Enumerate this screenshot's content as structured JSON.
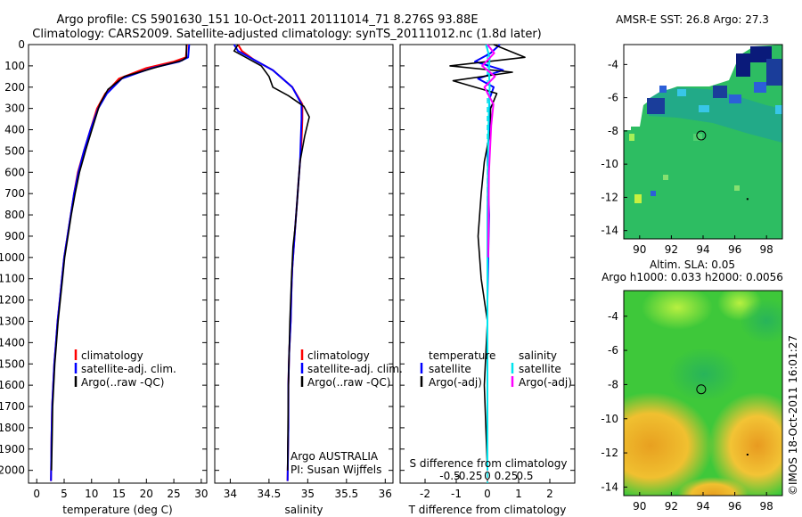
{
  "header": {
    "title_line1": "Argo profile: CS 5901630_151 10-Oct-2011 20111014_71 8.276S 93.88E",
    "title_line2": "Climatology: CARS2009. Satellite-adjusted climatology: synTS_20111012.nc (1.8d later)"
  },
  "colors": {
    "climatology": "#ff0000",
    "satellite": "#0000ff",
    "argo": "#000000",
    "salinity_satellite": "#00e5ee",
    "salinity_argo": "#ff00ff"
  },
  "notes": {
    "argo_country": "Argo AUSTRALIA",
    "pi": "PI: Susan Wijffels",
    "stamp": "©IMOS 18-Oct-2011 16:01:27"
  },
  "chart_data": [
    {
      "type": "line",
      "xlabel": "temperature (deg C)",
      "ylabel": "",
      "xlim": [
        -1.5,
        31
      ],
      "ylim": [
        2060,
        0
      ],
      "xticks": [
        0,
        5,
        10,
        15,
        20,
        25,
        30
      ],
      "yticks": [
        0,
        100,
        200,
        300,
        400,
        500,
        600,
        700,
        800,
        900,
        1000,
        1100,
        1200,
        1300,
        1400,
        1500,
        1600,
        1700,
        1800,
        1900,
        2000
      ],
      "legend": [
        "climatology",
        "satellite-adj. clim.",
        "Argo(..raw -QC)"
      ],
      "legend_position": "bottom-right",
      "series": [
        {
          "name": "climatology",
          "color": "#ff0000",
          "x": [
            27.4,
            27.2,
            25,
            20,
            15,
            12.5,
            11,
            9.8,
            8.6,
            7.5,
            6.8,
            6.2,
            5.6,
            5,
            4.6,
            4.2,
            3.8,
            3.5,
            3.2,
            3,
            2.8,
            2.7,
            2.6
          ],
          "y": [
            0,
            60,
            80,
            110,
            160,
            230,
            300,
            400,
            500,
            600,
            700,
            800,
            900,
            1000,
            1100,
            1200,
            1300,
            1400,
            1500,
            1600,
            1700,
            1850,
            2050
          ]
        },
        {
          "name": "satellite-adj. clim.",
          "color": "#0000ff",
          "x": [
            27.8,
            27.6,
            26,
            21,
            15.5,
            12.8,
            11.2,
            9.8,
            8.6,
            7.6,
            6.8,
            6.2,
            5.6,
            5,
            4.6,
            4.2,
            3.8,
            3.5,
            3.2,
            3,
            2.8,
            2.7,
            2.6
          ],
          "y": [
            0,
            60,
            80,
            110,
            160,
            230,
            300,
            400,
            500,
            600,
            700,
            800,
            900,
            1000,
            1100,
            1200,
            1300,
            1400,
            1500,
            1600,
            1700,
            1850,
            2050
          ]
        },
        {
          "name": "Argo(..raw -QC)",
          "color": "#000000",
          "x": [
            27.3,
            27.3,
            26.5,
            22,
            16,
            13,
            11.5,
            10.3,
            9,
            7.8,
            7,
            6.3,
            5.7,
            5.1,
            4.7,
            4.3,
            3.9,
            3.6,
            3.3,
            3.1,
            2.9,
            2.8,
            2.7
          ],
          "y": [
            0,
            60,
            75,
            105,
            150,
            210,
            280,
            380,
            490,
            600,
            700,
            800,
            900,
            1000,
            1100,
            1200,
            1300,
            1400,
            1500,
            1600,
            1700,
            1850,
            2000
          ]
        }
      ]
    },
    {
      "type": "line",
      "xlabel": "salinity",
      "ylabel": "",
      "xlim": [
        33.8,
        36.1
      ],
      "ylim": [
        2060,
        0
      ],
      "xticks": [
        34,
        34.5,
        35,
        35.5,
        36
      ],
      "legend": [
        "climatology",
        "satellite-adj. clim.",
        "Argo(..raw -QC)"
      ],
      "legend_position": "bottom-right",
      "series": [
        {
          "name": "climatology",
          "color": "#ff0000",
          "x": [
            34.1,
            34.15,
            34.3,
            34.55,
            34.8,
            34.93,
            34.93,
            34.92,
            34.9,
            34.88,
            34.86,
            34.84,
            34.82,
            34.8,
            34.79,
            34.78,
            34.76,
            34.75,
            34.75,
            34.74
          ],
          "y": [
            0,
            30,
            70,
            120,
            200,
            280,
            350,
            450,
            550,
            650,
            750,
            850,
            950,
            1050,
            1150,
            1300,
            1450,
            1600,
            1800,
            2050
          ]
        },
        {
          "name": "satellite-adj. clim.",
          "color": "#0000ff",
          "x": [
            34.05,
            34.1,
            34.3,
            34.55,
            34.8,
            34.92,
            34.92,
            34.91,
            34.9,
            34.88,
            34.86,
            34.84,
            34.82,
            34.8,
            34.79,
            34.78,
            34.76,
            34.75,
            34.75,
            34.74
          ],
          "y": [
            0,
            30,
            70,
            120,
            200,
            280,
            350,
            450,
            550,
            650,
            750,
            850,
            950,
            1050,
            1150,
            1300,
            1450,
            1600,
            1800,
            2050
          ]
        },
        {
          "name": "Argo(..raw -QC)",
          "color": "#000000",
          "x": [
            34.1,
            34.05,
            34.2,
            34.4,
            34.5,
            34.55,
            34.75,
            34.95,
            35.02,
            34.96,
            34.9,
            34.88,
            34.86,
            34.84,
            34.81,
            34.79,
            34.77,
            34.75,
            34.74
          ],
          "y": [
            0,
            30,
            60,
            100,
            150,
            200,
            240,
            290,
            340,
            430,
            550,
            650,
            750,
            850,
            950,
            1100,
            1300,
            1600,
            2000
          ]
        }
      ]
    },
    {
      "type": "line",
      "xlabel": "T difference from climatology",
      "xlabel_top": "S difference from climatology",
      "xlim": [
        -2.8,
        2.8
      ],
      "ylim": [
        2060,
        0
      ],
      "xticks": [
        -2,
        -1,
        0,
        1,
        2
      ],
      "xticks_top": [
        -0.5,
        -0.25,
        0,
        0.25,
        0.5
      ],
      "legend": [
        "temperature",
        "satellite",
        "Argo(-adj)",
        "salinity",
        "satellite",
        "Argo(-adj)"
      ],
      "legend_position": "bottom",
      "series": [
        {
          "name": "satellite",
          "color": "#0000ff",
          "x": [
            0.4,
            0.1,
            -0.4,
            0.5,
            -0.3,
            0.2,
            0.05,
            0.1,
            0.0,
            0.05,
            0.0,
            0.0,
            0.0
          ],
          "y": [
            0,
            40,
            80,
            120,
            160,
            200,
            260,
            350,
            500,
            800,
            1200,
            1600,
            2000
          ]
        },
        {
          "name": "Argo(-adj)",
          "color": "#000000",
          "x": [
            0.2,
            1.2,
            -1.2,
            0.8,
            -1.1,
            0.3,
            0.1,
            0.1,
            -0.1,
            -0.2,
            -0.3,
            -0.2,
            0.0,
            -0.1,
            0.0
          ],
          "y": [
            0,
            60,
            100,
            130,
            170,
            230,
            300,
            400,
            550,
            700,
            900,
            1100,
            1300,
            1600,
            2000
          ]
        },
        {
          "name": "satellite",
          "color": "#00e5ee",
          "x": [
            -0.02,
            0.03,
            0.02,
            0.03,
            0.02,
            0.01,
            0.0,
            0.0,
            0.0
          ],
          "y": [
            0,
            60,
            120,
            200,
            300,
            450,
            800,
            1400,
            2000
          ]
        },
        {
          "name": "Argo(-adj)",
          "color": "#ff00ff",
          "x": [
            0.0,
            0.09,
            -0.07,
            0.1,
            -0.04,
            0.08,
            0.05,
            0.02,
            0.01
          ],
          "y": [
            0,
            40,
            100,
            150,
            200,
            280,
            380,
            600,
            1000
          ]
        }
      ]
    },
    {
      "type": "heatmap",
      "title": "AMSR-E SST: 26.8 Argo: 27.3",
      "xlim": [
        89,
        99
      ],
      "ylim": [
        -14.5,
        -2.8
      ],
      "xticks": [
        90,
        92,
        94,
        96,
        98
      ],
      "yticks": [
        -4,
        -6,
        -8,
        -10,
        -12,
        -14
      ],
      "argo_position": [
        93.88,
        -8.276
      ],
      "marker": [
        96.8,
        -12.1
      ]
    },
    {
      "type": "heatmap",
      "title": "Altim. SLA: 0.05",
      "subtitle": "Argo h1000: 0.033 h2000: 0.0056",
      "xlim": [
        89,
        99
      ],
      "ylim": [
        -14.5,
        -2.5
      ],
      "xticks": [
        90,
        92,
        94,
        96,
        98
      ],
      "yticks": [
        -4,
        -6,
        -8,
        -10,
        -12,
        -14
      ],
      "argo_position": [
        93.88,
        -8.276
      ],
      "marker": [
        96.8,
        -12.1
      ]
    }
  ]
}
